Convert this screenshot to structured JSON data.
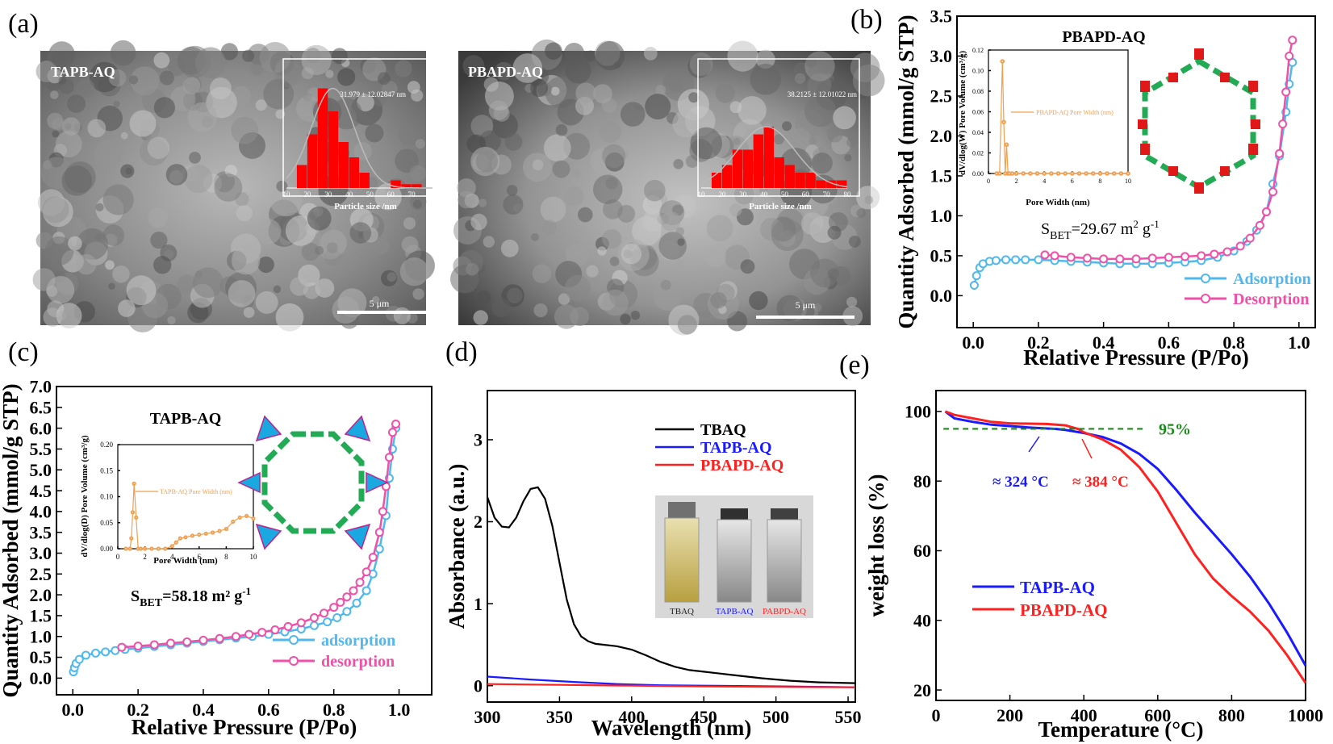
{
  "panel_labels": [
    "(a)",
    "(b)",
    "(c)",
    "(d)",
    "(e)"
  ],
  "colors": {
    "adsorption": "#4fb8ee",
    "desorption": "#f050a8",
    "tbaq": "#000000",
    "tapb": "#1a1aff",
    "pbapd": "#ff2020",
    "threshold": "#1a8a1a",
    "inset_line": "#f0a050",
    "hist_bar": "#ff0000",
    "hist_fit": "#bbbbbb"
  },
  "sem": {
    "left": {
      "label": "TAPB-AQ",
      "scalebar": "5 μm",
      "fit_text": "31.979 ± 12.02847 nm",
      "xlabel": "Particle size /nm",
      "ticks": [
        "10",
        "20",
        "30",
        "40",
        "50",
        "60",
        "70",
        "80"
      ]
    },
    "right": {
      "label": "PBAPD-AQ",
      "scalebar": "5 μm",
      "fit_text": "38.2125 ± 12.01022 nm",
      "xlabel": "Particle size /nm",
      "ticks": [
        "10",
        "20",
        "30",
        "40",
        "50",
        "60",
        "70",
        "80"
      ]
    }
  },
  "panel_b": {
    "title": "PBAPD-AQ",
    "sbet_label": "S",
    "sbet_sub": "BET",
    "sbet_value": "=29.67 m",
    "sbet_unit": "2",
    "sbet_tail": " g",
    "sbet_exp": "-1",
    "inset_ylabel": "dV/dlog(W) Pore Volume (cm³/g)",
    "inset_xlabel": "Pore Width (nm)",
    "inset_legend": "PBAPD-AQ  Pore Width (nm)"
  },
  "panel_c": {
    "title": "TAPB-AQ",
    "sbet_label": "S",
    "sbet_sub": "BET",
    "sbet_value": "=58.18 m",
    "sbet_unit": "²",
    "sbet_tail": " g",
    "sbet_exp": "-1",
    "inset_ylabel": "dV/dlog(D) Pore Volume (cm³/g)",
    "inset_xlabel": "Pore Width (nm)",
    "inset_legend": "TAPB-AQ  Pore Width (nm)"
  },
  "panel_d": {
    "vial_labels": [
      "TBAQ",
      "TAPB-AQ",
      "PABPD-AQ"
    ]
  },
  "panel_e": {
    "threshold_label": "95%",
    "ann_tapb": "≈ 324 °C",
    "ann_pbapd": "≈ 384 °C"
  },
  "chart_data": [
    {
      "id": "sem-histogram-tapb",
      "type": "bar",
      "x": [
        17.5,
        22.5,
        27.5,
        32.5,
        37.5,
        42.5,
        47.5,
        52.5,
        57.5,
        62.5,
        67.5,
        72.5,
        77.5
      ],
      "values": [
        3,
        7,
        13,
        10,
        6,
        4,
        2,
        0,
        0,
        1,
        0.5,
        0.5,
        0
      ],
      "xlim": [
        10,
        80
      ],
      "xlabel": "Particle size /nm"
    },
    {
      "id": "sem-histogram-pbapd",
      "type": "bar",
      "x": [
        17.5,
        22.5,
        27.5,
        32.5,
        37.5,
        42.5,
        47.5,
        52.5,
        57.5,
        62.5,
        67.5,
        72.5,
        77.5
      ],
      "values": [
        2,
        3,
        5,
        5,
        7,
        8,
        4,
        3,
        2,
        2,
        1,
        1,
        1
      ],
      "xlim": [
        10,
        80
      ],
      "xlabel": "Particle size /nm"
    },
    {
      "id": "panel-b",
      "type": "line",
      "xlabel": "Relative Pressure (P/Po)",
      "ylabel": "Quantity Adsorbed (mmol/g STP)",
      "xlim": [
        -0.05,
        1.05
      ],
      "ylim": [
        -0.4,
        3.5
      ],
      "xticks": [
        "0.0",
        "0.2",
        "0.4",
        "0.6",
        "0.8",
        "1.0"
      ],
      "yticks": [
        "0.0",
        "0.5",
        "1.0",
        "1.5",
        "2.0",
        "2.5",
        "3.0",
        "3.5"
      ],
      "legend": "bottom-right",
      "series": [
        {
          "name": "Adsorption",
          "x": [
            0.003,
            0.01,
            0.02,
            0.03,
            0.05,
            0.07,
            0.1,
            0.13,
            0.16,
            0.2,
            0.25,
            0.3,
            0.35,
            0.4,
            0.45,
            0.5,
            0.55,
            0.6,
            0.65,
            0.7,
            0.75,
            0.8,
            0.84,
            0.87,
            0.9,
            0.92,
            0.94,
            0.96,
            0.97,
            0.98
          ],
          "y": [
            0.13,
            0.25,
            0.35,
            0.4,
            0.43,
            0.44,
            0.45,
            0.45,
            0.45,
            0.45,
            0.44,
            0.43,
            0.42,
            0.41,
            0.4,
            0.4,
            0.4,
            0.41,
            0.42,
            0.44,
            0.48,
            0.56,
            0.68,
            0.82,
            1.05,
            1.4,
            1.75,
            2.3,
            2.65,
            2.92
          ]
        },
        {
          "name": "Desorption",
          "x": [
            0.98,
            0.97,
            0.96,
            0.95,
            0.94,
            0.92,
            0.9,
            0.88,
            0.85,
            0.82,
            0.78,
            0.74,
            0.7,
            0.65,
            0.6,
            0.55,
            0.5,
            0.45,
            0.4,
            0.35,
            0.3,
            0.25,
            0.22
          ],
          "y": [
            3.2,
            3.0,
            2.55,
            2.15,
            1.78,
            1.3,
            1.05,
            0.88,
            0.72,
            0.62,
            0.55,
            0.52,
            0.5,
            0.49,
            0.48,
            0.47,
            0.46,
            0.46,
            0.46,
            0.47,
            0.48,
            0.5,
            0.51
          ]
        }
      ]
    },
    {
      "id": "panel-b-inset",
      "type": "line",
      "xlabel": "Pore Width (nm)",
      "ylabel": "dV/dlog(W) Pore Volume (cm³/g)",
      "xlim": [
        0,
        10
      ],
      "ylim": [
        0,
        0.12
      ],
      "xticks": [
        "0",
        "2",
        "4",
        "6",
        "8",
        "10"
      ],
      "yticks": [
        "0.00",
        "0.02",
        "0.04",
        "0.06",
        "0.08",
        "0.10",
        "0.12"
      ],
      "series": [
        {
          "name": "PBAPD-AQ  Pore Width (nm)",
          "x": [
            0.6,
            0.8,
            1.0,
            1.1,
            1.2,
            1.3,
            1.4,
            1.5,
            1.7,
            2.0,
            2.5,
            3.0,
            3.5,
            4.0,
            4.5,
            5.0,
            5.5,
            6.0,
            6.5,
            7.0,
            7.5,
            8.0,
            8.5,
            9.0,
            9.5,
            10.0
          ],
          "y": [
            0,
            0,
            0.109,
            0.05,
            0,
            0.028,
            0,
            0,
            0,
            0,
            0,
            0,
            0,
            0,
            0,
            0,
            0,
            0,
            0,
            0,
            0,
            0,
            0,
            0,
            0,
            0
          ]
        }
      ]
    },
    {
      "id": "panel-c",
      "type": "line",
      "xlabel": "Relative Pressure (P/Po)",
      "ylabel": "Quantity Adsorbed (mmol/g STP)",
      "xlim": [
        -0.05,
        1.1
      ],
      "ylim": [
        -0.4,
        7.0
      ],
      "xticks": [
        "0.0",
        "0.2",
        "0.4",
        "0.6",
        "0.8",
        "1.0"
      ],
      "yticks": [
        "0.0",
        "0.5",
        "1.0",
        "1.5",
        "2.0",
        "2.5",
        "3.0",
        "3.5",
        "4.0",
        "4.5",
        "5.0",
        "5.5",
        "6.0",
        "6.5",
        "7.0"
      ],
      "legend": "bottom-right",
      "series": [
        {
          "name": "adsorption",
          "x": [
            0.002,
            0.005,
            0.01,
            0.02,
            0.04,
            0.07,
            0.1,
            0.13,
            0.16,
            0.2,
            0.25,
            0.3,
            0.35,
            0.4,
            0.45,
            0.5,
            0.55,
            0.6,
            0.65,
            0.7,
            0.74,
            0.78,
            0.81,
            0.84,
            0.87,
            0.9,
            0.92,
            0.94,
            0.96,
            0.97,
            0.98,
            0.99
          ],
          "y": [
            0.15,
            0.25,
            0.35,
            0.45,
            0.55,
            0.6,
            0.63,
            0.66,
            0.69,
            0.72,
            0.76,
            0.8,
            0.84,
            0.88,
            0.92,
            0.96,
            1.0,
            1.05,
            1.11,
            1.18,
            1.26,
            1.35,
            1.45,
            1.6,
            1.8,
            2.1,
            2.5,
            3.1,
            3.9,
            4.8,
            5.5,
            6.0
          ]
        },
        {
          "name": "desorption",
          "x": [
            0.99,
            0.98,
            0.97,
            0.96,
            0.95,
            0.94,
            0.92,
            0.9,
            0.88,
            0.86,
            0.84,
            0.82,
            0.8,
            0.77,
            0.74,
            0.7,
            0.66,
            0.62,
            0.58,
            0.54,
            0.5,
            0.45,
            0.4,
            0.35,
            0.3,
            0.25,
            0.2,
            0.15
          ],
          "y": [
            6.1,
            5.9,
            5.3,
            4.6,
            4.0,
            3.5,
            2.9,
            2.55,
            2.3,
            2.1,
            1.95,
            1.82,
            1.7,
            1.56,
            1.45,
            1.33,
            1.24,
            1.16,
            1.1,
            1.05,
            1.0,
            0.95,
            0.91,
            0.87,
            0.84,
            0.8,
            0.77,
            0.74
          ]
        }
      ]
    },
    {
      "id": "panel-c-inset",
      "type": "line",
      "xlabel": "Pore Width (nm)",
      "ylabel": "dV/dlog(D) Pore Volume (cm³/g)",
      "xlim": [
        0,
        10
      ],
      "ylim": [
        0,
        0.2
      ],
      "xticks": [
        "0",
        "2",
        "4",
        "6",
        "8",
        "10"
      ],
      "yticks": [
        "0.00",
        "0.05",
        "0.10",
        "0.15",
        "0.20"
      ],
      "series": [
        {
          "name": "TAPB-AQ  Pore Width (nm)",
          "x": [
            0.6,
            0.9,
            1.0,
            1.1,
            1.2,
            1.35,
            1.5,
            1.7,
            2.0,
            2.5,
            3.0,
            3.5,
            4.0,
            4.3,
            4.6,
            5.0,
            5.5,
            6.0,
            6.5,
            7.0,
            7.5,
            8.0,
            8.5,
            9.0,
            9.5,
            10.0
          ],
          "y": [
            0,
            0,
            0.02,
            0.07,
            0.125,
            0.06,
            0,
            0,
            0,
            0,
            0,
            0,
            0.005,
            0.012,
            0.02,
            0.022,
            0.025,
            0.027,
            0.029,
            0.031,
            0.034,
            0.038,
            0.052,
            0.06,
            0.063,
            0.058
          ]
        }
      ]
    },
    {
      "id": "panel-d",
      "type": "line",
      "xlabel": "Wavelength (nm)",
      "ylabel": "Absorbance (a.u.)",
      "xlim": [
        300,
        555
      ],
      "ylim": [
        -0.2,
        3.6
      ],
      "xticks": [
        "300",
        "350",
        "400",
        "450",
        "500",
        "550"
      ],
      "yticks": [
        "0",
        "1",
        "2",
        "3"
      ],
      "legend": "top-right",
      "series": [
        {
          "name": "TBAQ",
          "x": [
            300,
            305,
            310,
            315,
            320,
            325,
            330,
            335,
            340,
            345,
            350,
            355,
            360,
            365,
            370,
            375,
            380,
            390,
            400,
            410,
            420,
            430,
            440,
            450,
            470,
            490,
            510,
            530,
            555
          ],
          "y": [
            2.3,
            2.05,
            1.94,
            1.93,
            2.05,
            2.25,
            2.4,
            2.42,
            2.28,
            1.95,
            1.5,
            1.05,
            0.75,
            0.6,
            0.54,
            0.51,
            0.5,
            0.48,
            0.44,
            0.37,
            0.29,
            0.23,
            0.19,
            0.17,
            0.13,
            0.09,
            0.06,
            0.04,
            0.03
          ]
        },
        {
          "name": "TAPB-AQ",
          "x": [
            300,
            330,
            360,
            390,
            420,
            450,
            480,
            510,
            555
          ],
          "y": [
            0.11,
            0.075,
            0.045,
            0.02,
            0.005,
            0.0,
            -0.005,
            -0.01,
            -0.02
          ]
        },
        {
          "name": "PBAPD-AQ",
          "x": [
            300,
            350,
            400,
            450,
            500,
            555
          ],
          "y": [
            0.02,
            0.01,
            0.0,
            -0.01,
            -0.015,
            -0.02
          ]
        }
      ]
    },
    {
      "id": "panel-e",
      "type": "line",
      "xlabel": "Temperature (°C)",
      "ylabel": "weight loss (%)",
      "xlim": [
        0,
        1000
      ],
      "ylim": [
        17,
        106
      ],
      "xticks": [
        "0",
        "200",
        "400",
        "600",
        "800",
        "1000"
      ],
      "yticks": [
        "20",
        "40",
        "60",
        "80",
        "100"
      ],
      "legend": "bottom-left",
      "threshold": 95,
      "series": [
        {
          "name": "TAPB-AQ",
          "x": [
            25,
            50,
            100,
            150,
            200,
            250,
            300,
            324,
            350,
            400,
            450,
            500,
            550,
            600,
            650,
            700,
            750,
            800,
            850,
            900,
            950,
            1000
          ],
          "y": [
            100,
            98,
            97,
            96.2,
            95.8,
            95.4,
            95.1,
            95,
            94.7,
            93.8,
            92.7,
            90.8,
            87.8,
            83.5,
            77.5,
            71,
            65,
            59,
            52.5,
            45,
            36.5,
            27
          ]
        },
        {
          "name": "PBAPD-AQ",
          "x": [
            25,
            50,
            100,
            150,
            200,
            250,
            300,
            350,
            384,
            400,
            450,
            500,
            550,
            600,
            650,
            700,
            750,
            800,
            850,
            900,
            950,
            1000
          ],
          "y": [
            100,
            99,
            98,
            97,
            96.6,
            96.5,
            96.4,
            96,
            95,
            94,
            92,
            89,
            84,
            77,
            68,
            59,
            52,
            47,
            42.5,
            37,
            30,
            22
          ]
        }
      ]
    }
  ]
}
